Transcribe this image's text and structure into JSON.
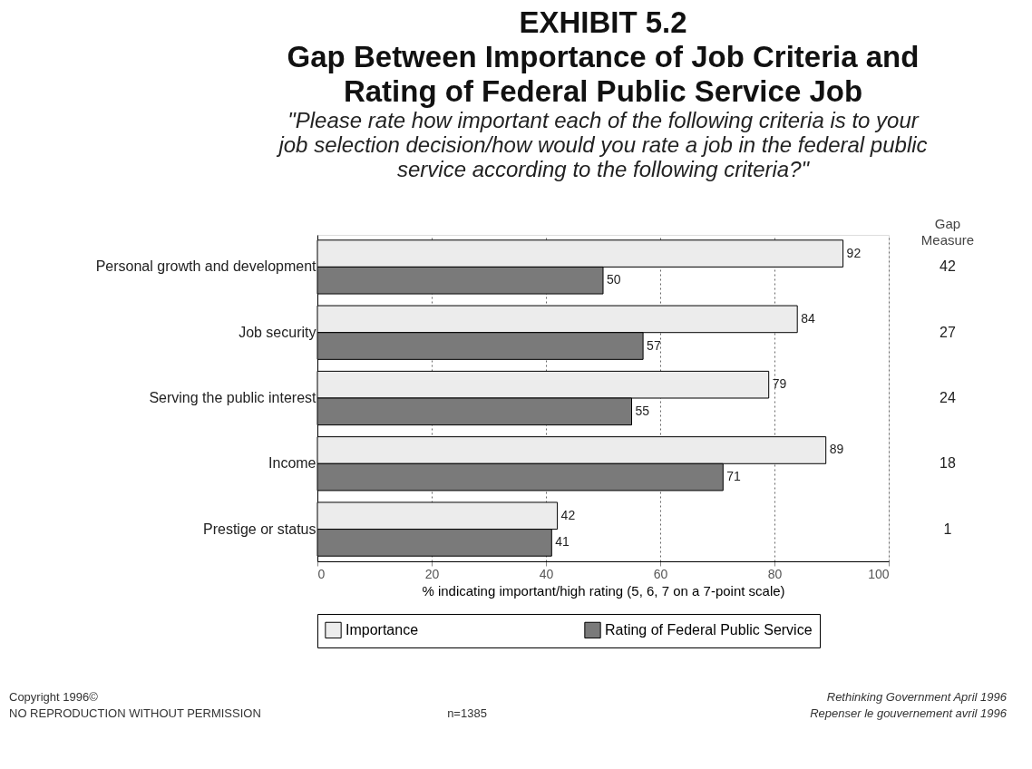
{
  "chart_data": {
    "type": "bar",
    "orientation": "horizontal",
    "title": "EXHIBIT 5.2\nGap Between Importance of Job Criteria and\nRating of Federal Public Service Job",
    "subtitle": "\"Please rate how important each of the following criteria is to your\njob selection decision/how would you rate a job in the federal public\nservice according to the following criteria?\"",
    "xlabel": "% indicating important/high rating (5, 6, 7 on a 7-point scale)",
    "categories": [
      "Personal growth and development",
      "Job security",
      "Serving the public interest",
      "Income",
      "Prestige or status"
    ],
    "series": [
      {
        "name": "Importance",
        "color": "#ececec",
        "values": [
          92,
          84,
          79,
          89,
          42
        ]
      },
      {
        "name": "Rating of Federal Public Service",
        "color": "#7a7a7a",
        "values": [
          50,
          57,
          55,
          71,
          41
        ]
      }
    ],
    "xlim": [
      0,
      100
    ],
    "xticks": [
      0,
      20,
      40,
      60,
      80,
      100
    ],
    "grid": "x",
    "legend": "bottom",
    "data_labels": true,
    "annotations": [
      "Gap\nMeasure",
      "42",
      "27",
      "24",
      "18",
      "1",
      "Copyright 1996©",
      "NO REPRODUCTION WITHOUT PERMISSION",
      "n=1385",
      "Rethinking Government April 1996",
      "Repenser le gouvernement avril 1996"
    ]
  }
}
